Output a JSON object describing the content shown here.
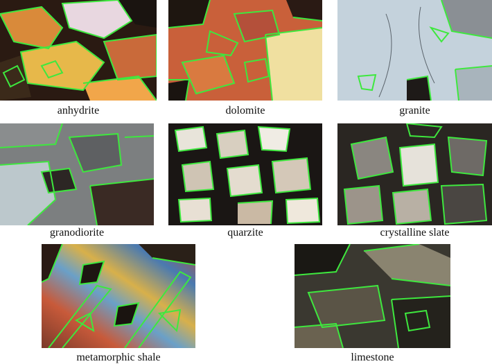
{
  "figure": {
    "outline_color": "#3ee83e",
    "panels": [
      {
        "caption": "anhydrite"
      },
      {
        "caption": "dolomite"
      },
      {
        "caption": "granite"
      },
      {
        "caption": "granodiorite"
      },
      {
        "caption": "quarzite"
      },
      {
        "caption": "crystalline slate"
      },
      {
        "caption": "metamorphic shale"
      },
      {
        "caption": "limestone"
      }
    ]
  }
}
